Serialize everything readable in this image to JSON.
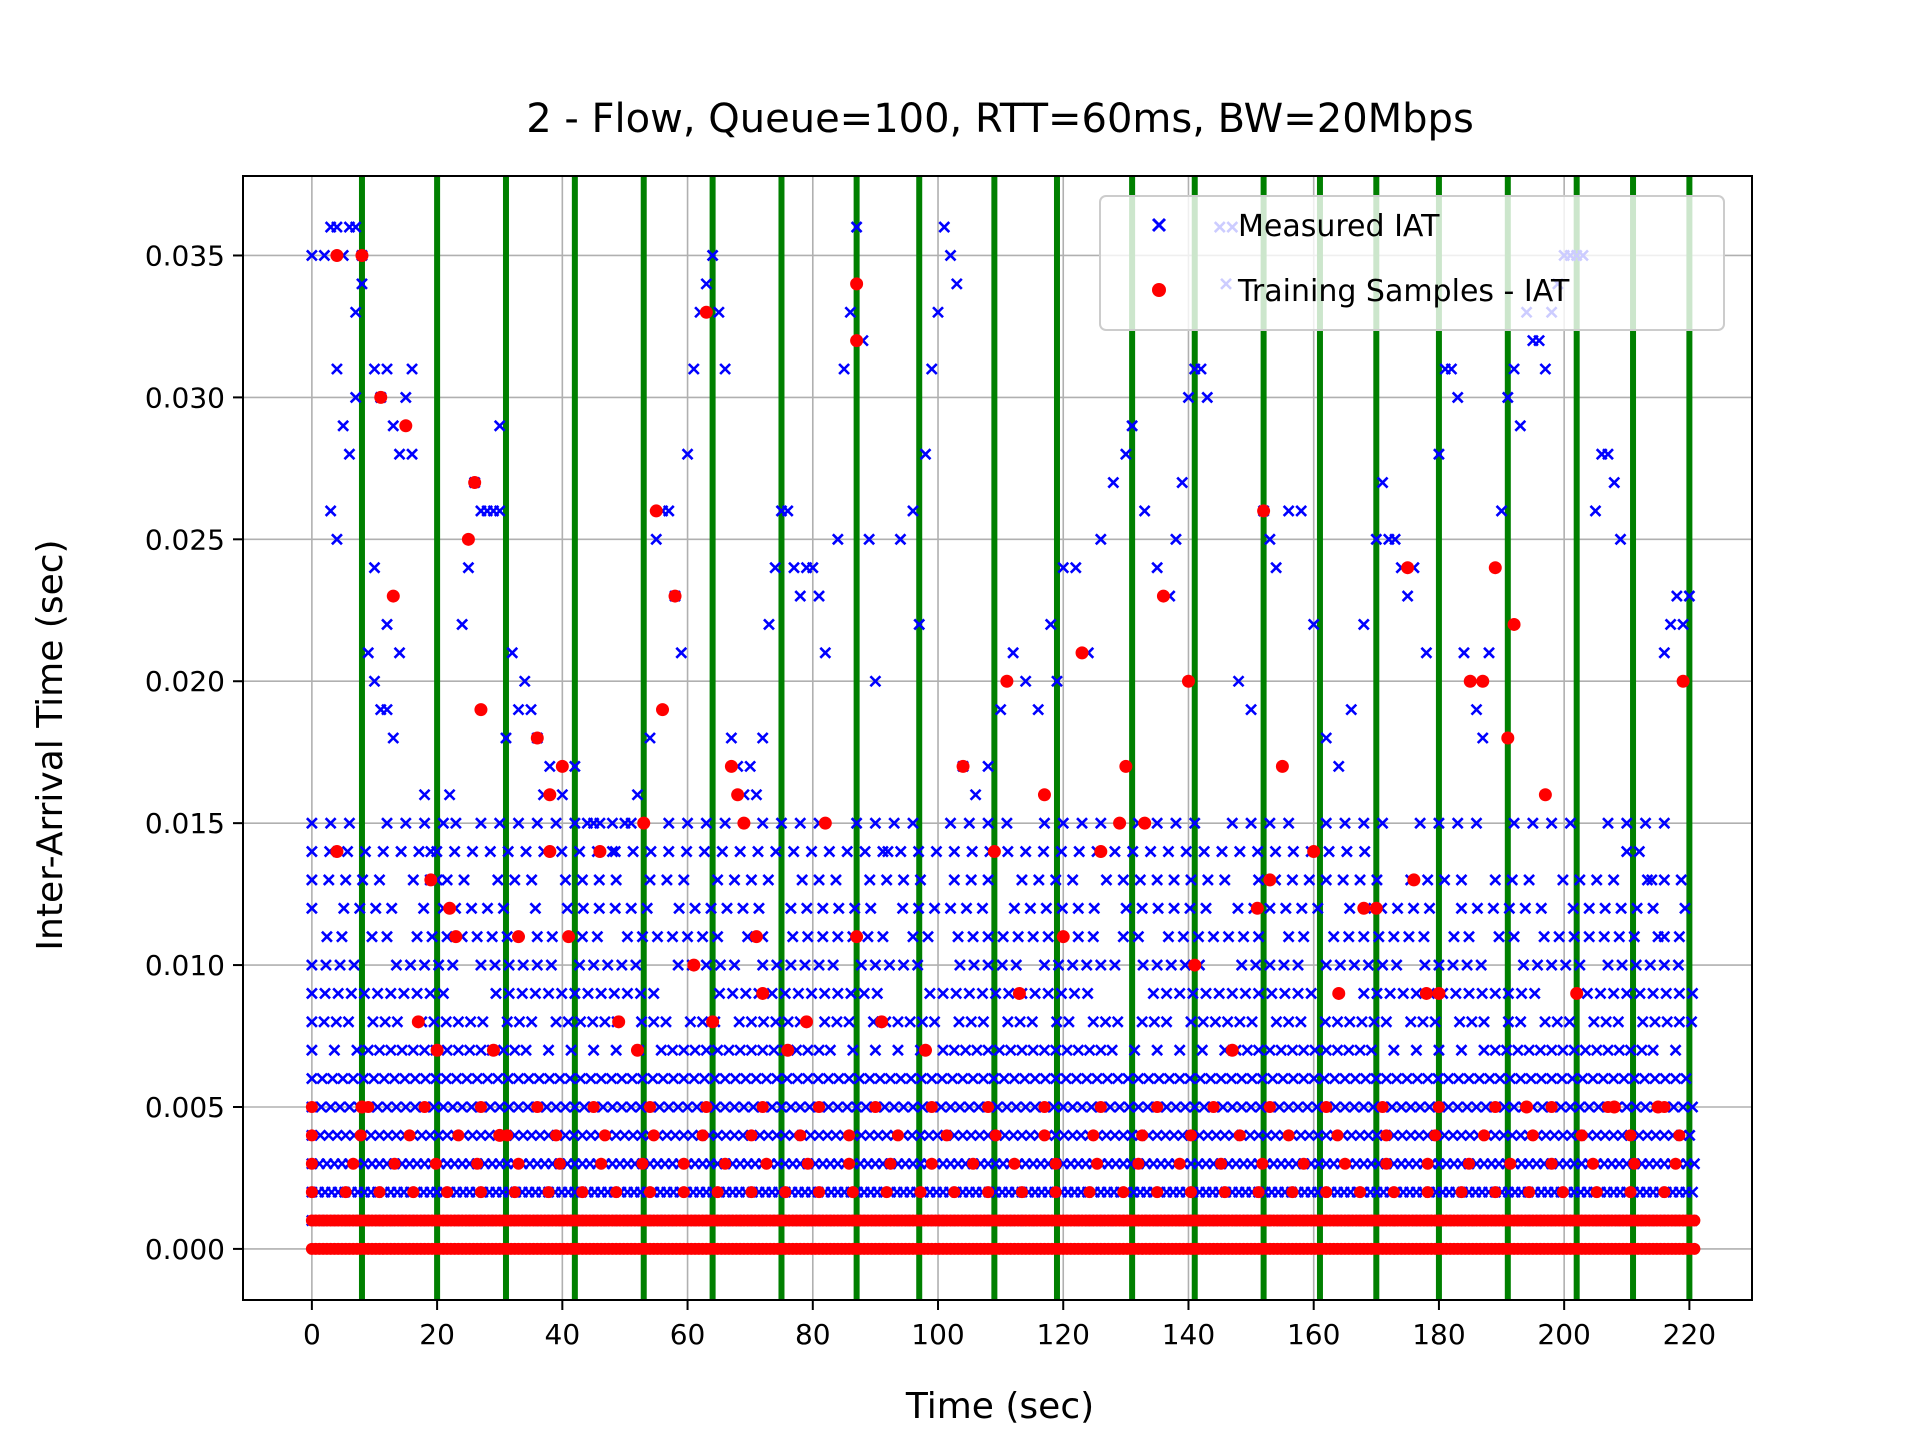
{
  "chart_data": {
    "type": "scatter",
    "title": "2 - Flow, Queue=100, RTT=60ms, BW=20Mbps",
    "xlabel": "Time (sec)",
    "ylabel": "Inter-Arrival Time (sec)",
    "xlim": [
      -11,
      230
    ],
    "ylim": [
      -0.0018,
      0.0378
    ],
    "x_ticks": [
      0,
      20,
      40,
      60,
      80,
      100,
      120,
      140,
      160,
      180,
      200,
      220
    ],
    "x_tick_labels": [
      "0",
      "20",
      "40",
      "60",
      "80",
      "100",
      "120",
      "140",
      "160",
      "180",
      "200",
      "220"
    ],
    "y_ticks": [
      0.0,
      0.005,
      0.01,
      0.015,
      0.02,
      0.025,
      0.03,
      0.035
    ],
    "y_tick_labels": [
      "0.000",
      "0.005",
      "0.010",
      "0.015",
      "0.020",
      "0.025",
      "0.030",
      "0.035"
    ],
    "grid": true,
    "legend_position": "top-right",
    "series": [
      {
        "name": "Measured IAT",
        "marker": "x",
        "color": "#0000ff",
        "points": [
          [
            0,
            0.035
          ],
          [
            2,
            0.035
          ],
          [
            3,
            0.036
          ],
          [
            4,
            0.036
          ],
          [
            5,
            0.035
          ],
          [
            6,
            0.036
          ],
          [
            7,
            0.036
          ],
          [
            8,
            0.035
          ],
          [
            4,
            0.031
          ],
          [
            5,
            0.029
          ],
          [
            3,
            0.026
          ],
          [
            4,
            0.025
          ],
          [
            6,
            0.028
          ],
          [
            7,
            0.03
          ],
          [
            7,
            0.033
          ],
          [
            8,
            0.034
          ],
          [
            10,
            0.031
          ],
          [
            11,
            0.03
          ],
          [
            12,
            0.031
          ],
          [
            13,
            0.029
          ],
          [
            14,
            0.028
          ],
          [
            15,
            0.03
          ],
          [
            16,
            0.031
          ],
          [
            16,
            0.028
          ],
          [
            9,
            0.021
          ],
          [
            10,
            0.02
          ],
          [
            11,
            0.019
          ],
          [
            12,
            0.019
          ],
          [
            13,
            0.018
          ],
          [
            14,
            0.021
          ],
          [
            10,
            0.024
          ],
          [
            12,
            0.022
          ],
          [
            18,
            0.016
          ],
          [
            19,
            0.014
          ],
          [
            20,
            0.013
          ],
          [
            21,
            0.012
          ],
          [
            22,
            0.016
          ],
          [
            23,
            0.015
          ],
          [
            24,
            0.022
          ],
          [
            25,
            0.024
          ],
          [
            26,
            0.027
          ],
          [
            27,
            0.026
          ],
          [
            28,
            0.026
          ],
          [
            29,
            0.026
          ],
          [
            30,
            0.026
          ],
          [
            30,
            0.029
          ],
          [
            31,
            0.018
          ],
          [
            32,
            0.021
          ],
          [
            33,
            0.019
          ],
          [
            34,
            0.02
          ],
          [
            35,
            0.019
          ],
          [
            36,
            0.018
          ],
          [
            37,
            0.016
          ],
          [
            38,
            0.017
          ],
          [
            39,
            0.015
          ],
          [
            40,
            0.016
          ],
          [
            42,
            0.017
          ],
          [
            44,
            0.015
          ],
          [
            46,
            0.015
          ],
          [
            48,
            0.014
          ],
          [
            50,
            0.015
          ],
          [
            52,
            0.016
          ],
          [
            54,
            0.018
          ],
          [
            55,
            0.025
          ],
          [
            56,
            0.026
          ],
          [
            57,
            0.026
          ],
          [
            58,
            0.023
          ],
          [
            59,
            0.021
          ],
          [
            60,
            0.028
          ],
          [
            61,
            0.031
          ],
          [
            62,
            0.033
          ],
          [
            63,
            0.034
          ],
          [
            64,
            0.035
          ],
          [
            65,
            0.033
          ],
          [
            66,
            0.031
          ],
          [
            67,
            0.018
          ],
          [
            68,
            0.017
          ],
          [
            69,
            0.016
          ],
          [
            70,
            0.017
          ],
          [
            71,
            0.016
          ],
          [
            72,
            0.018
          ],
          [
            73,
            0.022
          ],
          [
            74,
            0.024
          ],
          [
            75,
            0.026
          ],
          [
            76,
            0.026
          ],
          [
            77,
            0.024
          ],
          [
            78,
            0.023
          ],
          [
            79,
            0.024
          ],
          [
            80,
            0.024
          ],
          [
            81,
            0.023
          ],
          [
            82,
            0.021
          ],
          [
            84,
            0.025
          ],
          [
            85,
            0.031
          ],
          [
            86,
            0.033
          ],
          [
            87,
            0.036
          ],
          [
            88,
            0.032
          ],
          [
            89,
            0.025
          ],
          [
            90,
            0.02
          ],
          [
            92,
            0.014
          ],
          [
            94,
            0.025
          ],
          [
            96,
            0.026
          ],
          [
            97,
            0.022
          ],
          [
            98,
            0.028
          ],
          [
            99,
            0.031
          ],
          [
            100,
            0.033
          ],
          [
            101,
            0.036
          ],
          [
            102,
            0.035
          ],
          [
            103,
            0.034
          ],
          [
            104,
            0.017
          ],
          [
            106,
            0.016
          ],
          [
            108,
            0.017
          ],
          [
            110,
            0.019
          ],
          [
            112,
            0.021
          ],
          [
            114,
            0.02
          ],
          [
            116,
            0.019
          ],
          [
            118,
            0.022
          ],
          [
            119,
            0.02
          ],
          [
            120,
            0.024
          ],
          [
            122,
            0.024
          ],
          [
            124,
            0.021
          ],
          [
            126,
            0.025
          ],
          [
            128,
            0.027
          ],
          [
            130,
            0.028
          ],
          [
            131,
            0.029
          ],
          [
            133,
            0.026
          ],
          [
            135,
            0.024
          ],
          [
            137,
            0.023
          ],
          [
            138,
            0.025
          ],
          [
            139,
            0.027
          ],
          [
            140,
            0.03
          ],
          [
            141,
            0.031
          ],
          [
            142,
            0.031
          ],
          [
            143,
            0.03
          ],
          [
            145,
            0.036
          ],
          [
            146,
            0.034
          ],
          [
            147,
            0.036
          ],
          [
            148,
            0.02
          ],
          [
            150,
            0.019
          ],
          [
            152,
            0.026
          ],
          [
            153,
            0.025
          ],
          [
            154,
            0.024
          ],
          [
            156,
            0.026
          ],
          [
            158,
            0.026
          ],
          [
            160,
            0.022
          ],
          [
            162,
            0.018
          ],
          [
            164,
            0.017
          ],
          [
            166,
            0.019
          ],
          [
            168,
            0.022
          ],
          [
            170,
            0.025
          ],
          [
            171,
            0.027
          ],
          [
            172,
            0.025
          ],
          [
            173,
            0.025
          ],
          [
            174,
            0.024
          ],
          [
            175,
            0.023
          ],
          [
            176,
            0.024
          ],
          [
            178,
            0.021
          ],
          [
            180,
            0.028
          ],
          [
            181,
            0.031
          ],
          [
            182,
            0.031
          ],
          [
            183,
            0.03
          ],
          [
            184,
            0.021
          ],
          [
            186,
            0.019
          ],
          [
            187,
            0.018
          ],
          [
            188,
            0.021
          ],
          [
            190,
            0.026
          ],
          [
            191,
            0.03
          ],
          [
            192,
            0.031
          ],
          [
            193,
            0.029
          ],
          [
            194,
            0.033
          ],
          [
            195,
            0.032
          ],
          [
            196,
            0.032
          ],
          [
            197,
            0.031
          ],
          [
            198,
            0.033
          ],
          [
            199,
            0.034
          ],
          [
            200,
            0.035
          ],
          [
            201,
            0.035
          ],
          [
            202,
            0.035
          ],
          [
            203,
            0.035
          ],
          [
            205,
            0.026
          ],
          [
            206,
            0.028
          ],
          [
            207,
            0.028
          ],
          [
            208,
            0.027
          ],
          [
            209,
            0.025
          ],
          [
            210,
            0.014
          ],
          [
            212,
            0.014
          ],
          [
            214,
            0.013
          ],
          [
            215,
            0.011
          ],
          [
            216,
            0.021
          ],
          [
            217,
            0.022
          ],
          [
            218,
            0.023
          ],
          [
            219,
            0.022
          ],
          [
            220,
            0.023
          ]
        ]
      },
      {
        "name": "Training Samples - IAT",
        "marker": "o",
        "color": "#ff0000",
        "points": [
          [
            4,
            0.014
          ],
          [
            4,
            0.035
          ],
          [
            8,
            0.035
          ],
          [
            8,
            0.005
          ],
          [
            11,
            0.03
          ],
          [
            13,
            0.023
          ],
          [
            15,
            0.029
          ],
          [
            17,
            0.008
          ],
          [
            19,
            0.013
          ],
          [
            20,
            0.007
          ],
          [
            22,
            0.012
          ],
          [
            23,
            0.011
          ],
          [
            25,
            0.025
          ],
          [
            26,
            0.027
          ],
          [
            27,
            0.019
          ],
          [
            29,
            0.007
          ],
          [
            30,
            0.004
          ],
          [
            33,
            0.011
          ],
          [
            36,
            0.018
          ],
          [
            38,
            0.014
          ],
          [
            38,
            0.016
          ],
          [
            40,
            0.017
          ],
          [
            41,
            0.011
          ],
          [
            46,
            0.014
          ],
          [
            49,
            0.008
          ],
          [
            52,
            0.007
          ],
          [
            53,
            0.015
          ],
          [
            55,
            0.026
          ],
          [
            56,
            0.019
          ],
          [
            58,
            0.023
          ],
          [
            61,
            0.01
          ],
          [
            63,
            0.033
          ],
          [
            64,
            0.008
          ],
          [
            67,
            0.017
          ],
          [
            68,
            0.016
          ],
          [
            69,
            0.015
          ],
          [
            71,
            0.011
          ],
          [
            72,
            0.009
          ],
          [
            76,
            0.007
          ],
          [
            79,
            0.008
          ],
          [
            82,
            0.015
          ],
          [
            87,
            0.034
          ],
          [
            87,
            0.032
          ],
          [
            87,
            0.011
          ],
          [
            91,
            0.008
          ],
          [
            98,
            0.007
          ],
          [
            104,
            0.017
          ],
          [
            109,
            0.014
          ],
          [
            111,
            0.02
          ],
          [
            113,
            0.009
          ],
          [
            117,
            0.016
          ],
          [
            120,
            0.011
          ],
          [
            123,
            0.021
          ],
          [
            126,
            0.014
          ],
          [
            129,
            0.015
          ],
          [
            130,
            0.017
          ],
          [
            133,
            0.015
          ],
          [
            136,
            0.023
          ],
          [
            140,
            0.02
          ],
          [
            141,
            0.01
          ],
          [
            147,
            0.007
          ],
          [
            151,
            0.012
          ],
          [
            152,
            0.026
          ],
          [
            153,
            0.013
          ],
          [
            155,
            0.017
          ],
          [
            160,
            0.014
          ],
          [
            164,
            0.009
          ],
          [
            168,
            0.012
          ],
          [
            170,
            0.012
          ],
          [
            175,
            0.024
          ],
          [
            176,
            0.013
          ],
          [
            178,
            0.009
          ],
          [
            180,
            0.009
          ],
          [
            185,
            0.02
          ],
          [
            187,
            0.02
          ],
          [
            189,
            0.024
          ],
          [
            191,
            0.018
          ],
          [
            192,
            0.022
          ],
          [
            194,
            0.005
          ],
          [
            197,
            0.016
          ],
          [
            202,
            0.009
          ],
          [
            208,
            0.005
          ],
          [
            215,
            0.005
          ],
          [
            219,
            0.02
          ]
        ],
        "band_levels": [
          0.0,
          0.001,
          0.002,
          0.003,
          0.004,
          0.005
        ],
        "band_x_range": [
          0,
          221
        ]
      }
    ],
    "measured_band_levels": [
      0.001,
      0.002,
      0.003,
      0.004,
      0.005,
      0.006,
      0.007,
      0.008,
      0.009,
      0.01,
      0.011,
      0.012,
      0.013,
      0.014,
      0.015
    ],
    "measured_band_x_range": [
      0,
      221
    ],
    "vertical_lines": {
      "color": "#008000",
      "x": [
        8,
        20,
        31,
        42,
        53,
        64,
        75,
        87,
        97,
        109,
        119,
        131,
        141,
        152,
        161,
        170,
        180,
        191,
        202,
        211,
        220
      ]
    }
  }
}
